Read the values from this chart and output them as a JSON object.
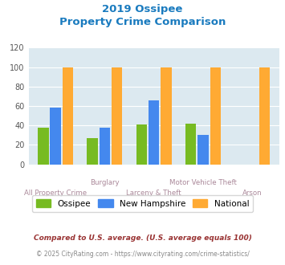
{
  "title_line1": "2019 Ossipee",
  "title_line2": "Property Crime Comparison",
  "title_color": "#1a7bbf",
  "ossipee_vals": [
    38,
    27,
    41,
    42,
    0
  ],
  "nh_vals": [
    58,
    38,
    66,
    30,
    0
  ],
  "national_vals": [
    100,
    100,
    100,
    100,
    100
  ],
  "ossipee_color": "#77bb22",
  "nh_color": "#4488ee",
  "national_color": "#ffaa33",
  "ylim": [
    0,
    120
  ],
  "yticks": [
    0,
    20,
    40,
    60,
    80,
    100,
    120
  ],
  "plot_bg": "#dce9f0",
  "xlabels_odd": [
    "All Property Crime",
    "Larceny & Theft",
    "Arson"
  ],
  "xlabels_even": [
    "Burglary",
    "Motor Vehicle Theft"
  ],
  "legend_labels": [
    "Ossipee",
    "New Hampshire",
    "National"
  ],
  "footnote1": "Compared to U.S. average. (U.S. average equals 100)",
  "footnote2": "© 2025 CityRating.com - https://www.cityrating.com/crime-statistics/",
  "footnote1_color": "#993333",
  "footnote2_color": "#888888",
  "bar_width": 0.22
}
